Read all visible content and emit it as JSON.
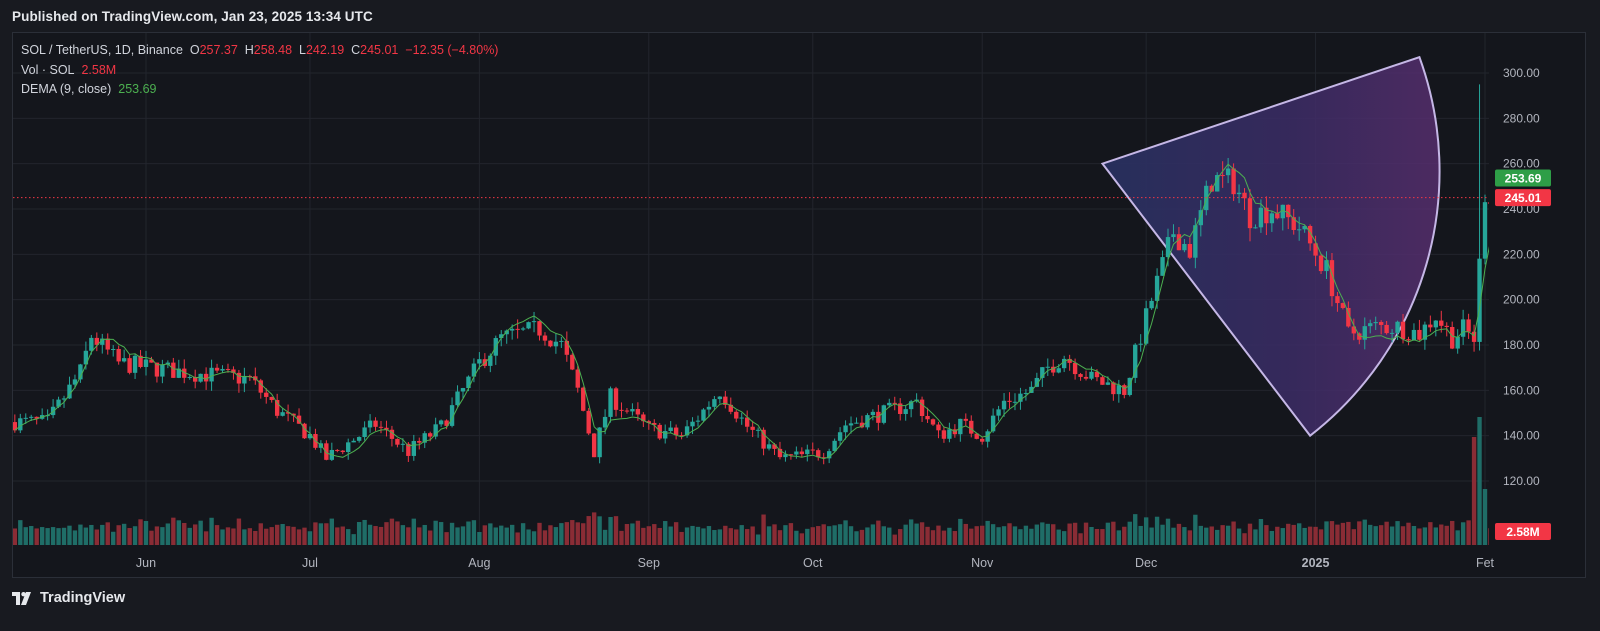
{
  "header": {
    "published": "Published on TradingView.com, Jan 23, 2025 13:34 UTC"
  },
  "legend": {
    "symbol": "SOL / TetherUS, 1D, Binance",
    "o_label": "O",
    "o": "257.37",
    "h_label": "H",
    "h": "258.48",
    "l_label": "L",
    "l": "242.19",
    "c_label": "C",
    "c": "245.01",
    "change": "−12.35 (−4.80%)",
    "vol_label": "Vol · SOL",
    "vol": "2.58M",
    "dema_label": "DEMA (9, close)",
    "dema": "253.69"
  },
  "footer": {
    "brand": "TradingView"
  },
  "colors": {
    "up": "#26a69a",
    "down": "#f23645",
    "dema": "#4caf50",
    "shape_edge": "#c5b7e6"
  },
  "chart_data": {
    "type": "candlestick",
    "y_ticks": [
      "300.00",
      "280.00",
      "260.00",
      "240.00",
      "220.00",
      "200.00",
      "180.00",
      "160.00",
      "140.00",
      "120.00"
    ],
    "ylim": [
      100,
      310
    ],
    "x_ticks": [
      "Jun",
      "Jul",
      "Aug",
      "Sep",
      "Oct",
      "Nov",
      "Dec",
      "2025",
      "Fet"
    ],
    "x_tick_dates": [
      "2024-06-01",
      "2024-07-01",
      "2024-08-01",
      "2024-09-01",
      "2024-10-01",
      "2024-11-01",
      "2024-12-01",
      "2025-01-01",
      "2025-02-01"
    ],
    "date_range": [
      "2024-05-08",
      "2025-02-03"
    ],
    "last_price": 245.01,
    "last_price_label": "245.01",
    "dema_value": 253.69,
    "dema_value_label": "253.69",
    "volume_label": "2.58M",
    "close_path": [
      [
        "2024-05-08",
        146
      ],
      [
        "2024-05-14",
        146
      ],
      [
        "2024-05-20",
        168
      ],
      [
        "2024-05-22",
        184
      ],
      [
        "2024-05-27",
        172
      ],
      [
        "2024-06-05",
        169
      ],
      [
        "2024-06-12",
        167
      ],
      [
        "2024-06-20",
        165
      ],
      [
        "2024-06-25",
        151
      ],
      [
        "2024-07-01",
        140
      ],
      [
        "2024-07-04",
        130
      ],
      [
        "2024-07-07",
        135
      ],
      [
        "2024-07-13",
        145
      ],
      [
        "2024-07-19",
        133
      ],
      [
        "2024-07-25",
        144
      ],
      [
        "2024-08-01",
        172
      ],
      [
        "2024-08-05",
        183
      ],
      [
        "2024-08-12",
        187
      ],
      [
        "2024-08-16",
        180
      ],
      [
        "2024-08-19",
        160
      ],
      [
        "2024-08-22",
        133
      ],
      [
        "2024-08-25",
        157
      ],
      [
        "2024-09-01",
        143
      ],
      [
        "2024-09-07",
        140
      ],
      [
        "2024-09-10",
        148
      ],
      [
        "2024-09-14",
        160
      ],
      [
        "2024-09-19",
        144
      ],
      [
        "2024-09-25",
        130
      ],
      [
        "2024-09-29",
        131
      ],
      [
        "2024-10-03",
        133
      ],
      [
        "2024-10-07",
        145
      ],
      [
        "2024-10-14",
        150
      ],
      [
        "2024-10-20",
        155
      ],
      [
        "2024-10-24",
        140
      ],
      [
        "2024-10-28",
        145
      ],
      [
        "2024-11-01",
        140
      ],
      [
        "2024-11-05",
        155
      ],
      [
        "2024-11-10",
        160
      ],
      [
        "2024-11-13",
        170
      ],
      [
        "2024-11-16",
        175
      ],
      [
        "2024-11-21",
        165
      ],
      [
        "2024-11-27",
        160
      ],
      [
        "2024-12-02",
        200
      ],
      [
        "2024-12-06",
        230
      ],
      [
        "2024-12-09",
        222
      ],
      [
        "2024-12-13",
        253
      ],
      [
        "2024-12-17",
        252
      ],
      [
        "2024-12-20",
        237
      ],
      [
        "2024-12-24",
        240
      ],
      [
        "2024-12-29",
        232
      ],
      [
        "2025-01-03",
        213
      ],
      [
        "2025-01-07",
        185
      ],
      [
        "2025-01-12",
        188
      ],
      [
        "2025-01-16",
        188
      ],
      [
        "2025-01-20",
        185
      ],
      [
        "2025-01-23",
        193
      ],
      [
        "2025-01-26",
        183
      ],
      [
        "2025-01-28",
        187
      ],
      [
        "2025-01-30",
        183
      ],
      [
        "2025-02-01",
        248
      ],
      [
        "2025-02-03",
        245
      ]
    ],
    "annotation_shape": {
      "type": "sector",
      "apex": [
        "2024-11-23",
        260
      ],
      "arc_start": [
        "2025-01-20",
        307
      ],
      "arc_end": [
        "2024-12-31",
        140
      ]
    }
  }
}
